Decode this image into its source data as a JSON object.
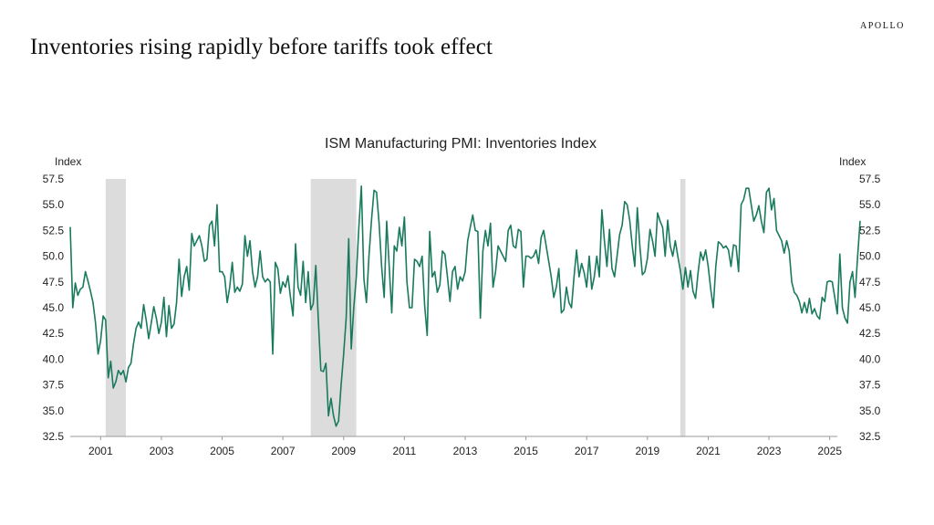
{
  "brand": "APOLLO",
  "slide_title": "Inventories rising rapidly before tariffs took effect",
  "chart_data": {
    "type": "line",
    "title": "ISM Manufacturing PMI: Inventories Index",
    "ylabel_left": "Index",
    "ylabel_right": "Index",
    "ylim": [
      32.5,
      57.5
    ],
    "yticks": [
      "32.5",
      "35.0",
      "37.5",
      "40.0",
      "42.5",
      "45.0",
      "47.5",
      "50.0",
      "52.5",
      "55.0",
      "57.5"
    ],
    "xlim": [
      "2000-01",
      "2025-04"
    ],
    "xticks": [
      "2001",
      "2003",
      "2005",
      "2007",
      "2009",
      "2011",
      "2013",
      "2015",
      "2017",
      "2019",
      "2021",
      "2023",
      "2025"
    ],
    "line_color": "#1a7a5e",
    "recession_color": "#dcdcdc",
    "recessions": [
      [
        "2001-03",
        "2001-11"
      ],
      [
        "2007-12",
        "2009-06"
      ],
      [
        "2020-02",
        "2020-04"
      ]
    ],
    "start": "2000-01",
    "frequency": "monthly",
    "values": [
      52.8,
      45.0,
      47.4,
      46.2,
      46.8,
      47.0,
      48.5,
      47.6,
      46.6,
      45.5,
      43.5,
      40.5,
      41.8,
      44.2,
      43.8,
      38.2,
      39.8,
      37.2,
      37.8,
      38.9,
      38.5,
      38.9,
      37.8,
      39.2,
      39.6,
      41.5,
      43.0,
      43.6,
      43.0,
      45.3,
      43.8,
      42.0,
      43.5,
      45.1,
      44.0,
      42.5,
      43.6,
      46.0,
      42.2,
      45.2,
      43.0,
      43.4,
      45.5,
      49.7,
      46.1,
      48.0,
      49.0,
      46.7,
      52.2,
      51.0,
      51.5,
      52.0,
      51.0,
      49.5,
      49.7,
      53.0,
      53.4,
      51.0,
      55.0,
      48.5,
      48.5,
      48.0,
      45.5,
      47.0,
      49.4,
      46.5,
      47.0,
      46.6,
      47.3,
      52.0,
      50.0,
      51.5,
      48.5,
      47.0,
      48.0,
      50.5,
      48.0,
      47.5,
      47.8,
      47.5,
      40.5,
      49.4,
      48.8,
      46.4,
      47.5,
      47.0,
      48.1,
      46.0,
      44.2,
      51.2,
      47.0,
      46.2,
      49.5,
      45.5,
      48.5,
      44.8,
      45.4,
      49.1,
      43.8,
      38.9,
      38.8,
      39.6,
      34.5,
      36.2,
      34.5,
      33.5,
      34.0,
      37.5,
      40.5,
      44.0,
      51.7,
      41.0,
      45.0,
      48.0,
      52.8,
      56.8,
      47.8,
      45.5,
      50.0,
      53.5,
      56.4,
      56.2,
      53.2,
      49.0,
      46.0,
      53.4,
      49.0,
      44.5,
      51.0,
      50.5,
      52.8,
      51.0,
      53.8,
      47.5,
      45.0,
      45.0,
      49.7,
      49.5,
      49.0,
      50.0,
      45.2,
      42.3,
      52.4,
      48.0,
      48.5,
      46.5,
      47.2,
      50.5,
      50.2,
      48.0,
      45.6,
      48.5,
      49.0,
      46.8,
      48.0,
      47.6,
      48.5,
      51.5,
      52.8,
      54.0,
      52.5,
      52.4,
      44.0,
      50.5,
      52.5,
      51.0,
      53.2,
      47.0,
      48.5,
      51.0,
      50.5,
      50.0,
      49.5,
      52.5,
      53.0,
      51.0,
      50.8,
      52.6,
      52.4,
      47.0,
      50.0,
      50.0,
      49.8,
      50.0,
      50.6,
      49.3,
      51.8,
      52.5,
      51.0,
      49.5,
      48.0,
      46.0,
      47.0,
      48.8,
      44.5,
      44.8,
      47.0,
      45.5,
      45.0,
      48.0,
      50.6,
      48.0,
      49.3,
      48.4,
      47.0,
      50.0,
      46.8,
      48.0,
      50.0,
      48.0,
      54.5,
      51.5,
      49.0,
      52.6,
      48.8,
      48.0,
      50.0,
      52.1,
      53.0,
      55.3,
      55.0,
      53.5,
      51.0,
      49.0,
      54.7,
      51.0,
      48.2,
      48.5,
      49.8,
      52.6,
      51.5,
      50.0,
      54.2,
      53.4,
      52.8,
      50.0,
      53.5,
      51.0,
      50.0,
      51.5,
      50.0,
      48.6,
      46.8,
      48.9,
      47.0,
      48.6,
      46.6,
      45.9,
      48.4,
      50.4,
      49.6,
      50.6,
      49.0,
      46.8,
      45.0,
      49.0,
      51.4,
      51.2,
      50.8,
      51.0,
      50.6,
      49.0,
      51.1,
      51.0,
      48.5,
      55.0,
      55.5,
      56.6,
      56.6,
      55.0,
      53.4,
      54.0,
      54.9,
      53.4,
      52.3,
      56.2,
      56.6,
      54.5,
      55.6,
      52.5,
      52.0,
      51.5,
      50.3,
      51.5,
      50.5,
      47.5,
      46.5,
      46.2,
      45.6,
      44.5,
      45.5,
      44.5,
      45.9,
      44.4,
      44.9,
      44.2,
      43.9,
      46.0,
      45.6,
      47.5,
      47.6,
      47.5,
      46.0,
      44.4,
      50.2,
      45.0,
      44.0,
      43.5,
      47.5,
      48.5,
      46.0,
      49.9,
      53.4
    ]
  }
}
